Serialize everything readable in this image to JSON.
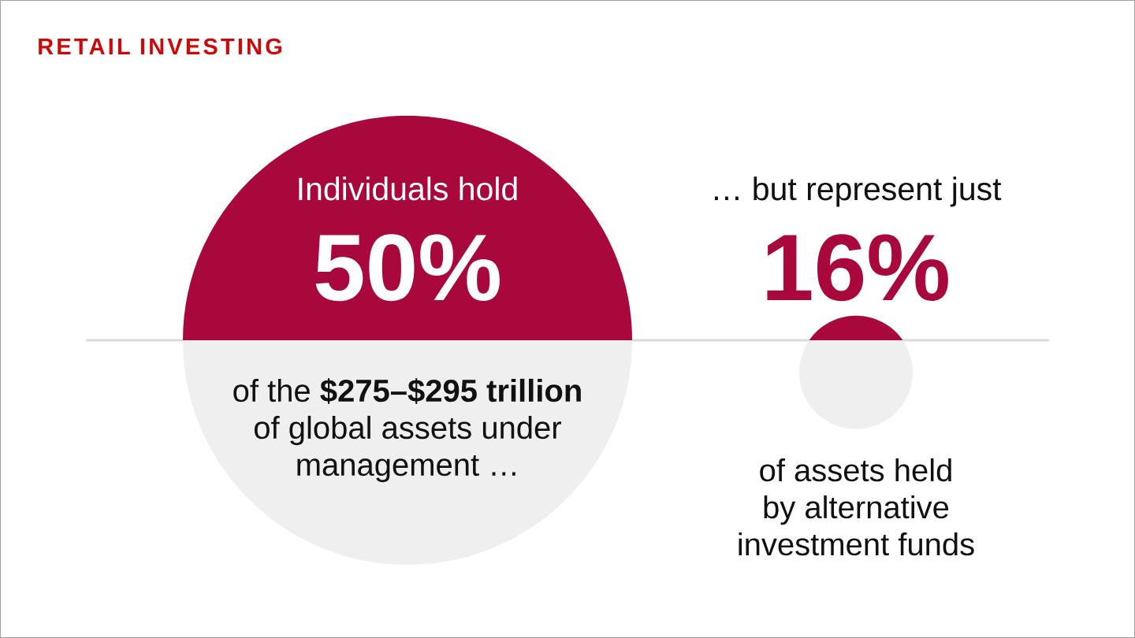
{
  "chart_data": {
    "type": "other",
    "title": "RETAIL INVESTING",
    "categories": [
      "Individuals hold",
      "… but represent just"
    ],
    "values": [
      50,
      16
    ],
    "value_labels": [
      "50%",
      "16%"
    ],
    "colors": [
      "#a8083c",
      "#a8083c"
    ],
    "annotations": [
      "of the **$275–$295 trillion** of global assets under management …",
      "of assets held by alternative investment funds"
    ]
  }
}
